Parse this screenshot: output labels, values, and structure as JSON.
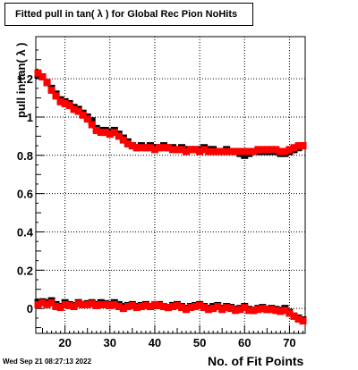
{
  "footer": {
    "timestamp": "Wed Sep 21 08:27:13 2022"
  },
  "chart_data": {
    "type": "scatter",
    "title": "Fitted pull in tan( λ ) for Global Rec Pion NoHits",
    "xlabel": "No. of Fit Points",
    "ylabel": "pull in tan( λ )",
    "xlim": [
      13.5,
      73.5
    ],
    "ylim": [
      -0.13,
      1.42
    ],
    "grid": true,
    "x_ticks": [
      20,
      30,
      40,
      50,
      60,
      70
    ],
    "x_tick_labels": [
      "20",
      "30",
      "40",
      "50",
      "60",
      "70"
    ],
    "y_ticks": [
      0,
      0.2,
      0.4,
      0.6,
      0.8,
      1,
      1.2
    ],
    "y_tick_labels": [
      "0",
      "0.2",
      "0.4",
      "0.6",
      "0.8",
      "1",
      "1.2"
    ],
    "colors": {
      "black": "#000000",
      "red": "#ff0000"
    },
    "series": [
      {
        "color": "#000000",
        "x": [
          14,
          15,
          16,
          17,
          18,
          19,
          20,
          21,
          22,
          23,
          24,
          25,
          26,
          27,
          28,
          29,
          30,
          31,
          32,
          33,
          34,
          35,
          36,
          37,
          38,
          39,
          40,
          41,
          42,
          43,
          44,
          45,
          46,
          47,
          48,
          49,
          50,
          51,
          52,
          53,
          54,
          55,
          56,
          57,
          58,
          59,
          60,
          61,
          62,
          63,
          64,
          65,
          66,
          67,
          68,
          69,
          70,
          71,
          72,
          73
        ],
        "values": [
          1.22,
          1.21,
          1.18,
          1.15,
          1.12,
          1.09,
          1.08,
          1.07,
          1.05,
          1.04,
          1.02,
          1.0,
          0.98,
          0.94,
          0.93,
          0.93,
          0.92,
          0.93,
          0.91,
          0.89,
          0.87,
          0.85,
          0.84,
          0.85,
          0.84,
          0.85,
          0.84,
          0.84,
          0.85,
          0.84,
          0.84,
          0.83,
          0.84,
          0.83,
          0.83,
          0.83,
          0.83,
          0.84,
          0.83,
          0.83,
          0.82,
          0.82,
          0.83,
          0.82,
          0.82,
          0.81,
          0.8,
          0.81,
          0.82,
          0.82,
          0.82,
          0.82,
          0.82,
          0.82,
          0.81,
          0.81,
          0.82,
          0.83,
          0.84,
          0.85
        ]
      },
      {
        "color": "#ff0000",
        "x": [
          14,
          15,
          16,
          17,
          18,
          19,
          20,
          21,
          22,
          23,
          24,
          25,
          26,
          27,
          28,
          29,
          30,
          31,
          32,
          33,
          34,
          35,
          36,
          37,
          38,
          39,
          40,
          41,
          42,
          43,
          44,
          45,
          46,
          47,
          48,
          49,
          50,
          51,
          52,
          53,
          54,
          55,
          56,
          57,
          58,
          59,
          60,
          61,
          62,
          63,
          64,
          65,
          66,
          67,
          68,
          69,
          70,
          71,
          72,
          73
        ],
        "values": [
          1.23,
          1.21,
          1.18,
          1.14,
          1.11,
          1.08,
          1.07,
          1.06,
          1.04,
          1.03,
          1.01,
          0.99,
          0.96,
          0.93,
          0.92,
          0.92,
          0.91,
          0.92,
          0.9,
          0.88,
          0.86,
          0.85,
          0.84,
          0.84,
          0.84,
          0.84,
          0.83,
          0.84,
          0.84,
          0.84,
          0.83,
          0.83,
          0.83,
          0.82,
          0.83,
          0.83,
          0.82,
          0.83,
          0.82,
          0.82,
          0.82,
          0.82,
          0.82,
          0.82,
          0.82,
          0.82,
          0.82,
          0.82,
          0.82,
          0.83,
          0.83,
          0.83,
          0.83,
          0.83,
          0.82,
          0.82,
          0.83,
          0.84,
          0.85,
          0.85
        ]
      },
      {
        "color": "#000000",
        "x": [
          14,
          15,
          16,
          17,
          18,
          19,
          20,
          21,
          22,
          23,
          24,
          25,
          26,
          27,
          28,
          29,
          30,
          31,
          32,
          33,
          34,
          35,
          36,
          37,
          38,
          39,
          40,
          41,
          42,
          43,
          44,
          45,
          46,
          47,
          48,
          49,
          50,
          51,
          52,
          53,
          54,
          55,
          56,
          57,
          58,
          59,
          60,
          61,
          62,
          63,
          64,
          65,
          66,
          67,
          68,
          69,
          70,
          71,
          72,
          73
        ],
        "values": [
          0.03,
          0.035,
          0.03,
          0.04,
          0.02,
          0.01,
          0.03,
          0.02,
          0.015,
          0.03,
          0.02,
          0.025,
          0.03,
          0.02,
          0.03,
          0.025,
          0.02,
          0.03,
          0.02,
          0.01,
          0.015,
          0.02,
          0.01,
          0.015,
          0.02,
          0.01,
          0.015,
          0.02,
          0.01,
          0.005,
          0.015,
          0.02,
          0.01,
          0.0,
          0.01,
          0.015,
          0.02,
          0.01,
          0.0,
          0.01,
          0.015,
          0.0,
          0.01,
          0.005,
          -0.005,
          0.0,
          0.01,
          -0.005,
          -0.01,
          0.0,
          0.005,
          -0.005,
          0.0,
          -0.005,
          -0.01,
          0.0,
          -0.02,
          -0.04,
          -0.05,
          -0.06
        ]
      },
      {
        "color": "#ff0000",
        "x": [
          14,
          15,
          16,
          17,
          18,
          19,
          20,
          21,
          22,
          23,
          24,
          25,
          26,
          27,
          28,
          29,
          30,
          31,
          32,
          33,
          34,
          35,
          36,
          37,
          38,
          39,
          40,
          41,
          42,
          43,
          44,
          45,
          46,
          47,
          48,
          49,
          50,
          51,
          52,
          53,
          54,
          55,
          56,
          57,
          58,
          59,
          60,
          61,
          62,
          63,
          64,
          65,
          66,
          67,
          68,
          69,
          70,
          71,
          72,
          73
        ],
        "values": [
          0.02,
          0.03,
          0.02,
          0.03,
          0.01,
          0.005,
          0.02,
          0.015,
          0.01,
          0.025,
          0.02,
          0.02,
          0.025,
          0.015,
          0.02,
          0.02,
          0.015,
          0.02,
          0.01,
          0.0,
          0.01,
          0.015,
          0.005,
          0.01,
          0.015,
          0.01,
          0.02,
          0.015,
          0.01,
          0.005,
          0.01,
          0.015,
          0.005,
          -0.005,
          0.005,
          0.01,
          0.015,
          0.005,
          -0.005,
          0.0,
          0.01,
          -0.005,
          0.005,
          0.0,
          -0.01,
          -0.005,
          0.005,
          -0.01,
          -0.01,
          -0.005,
          0.0,
          -0.005,
          -0.005,
          -0.01,
          -0.015,
          -0.01,
          -0.025,
          -0.04,
          -0.055,
          -0.065
        ]
      }
    ]
  }
}
